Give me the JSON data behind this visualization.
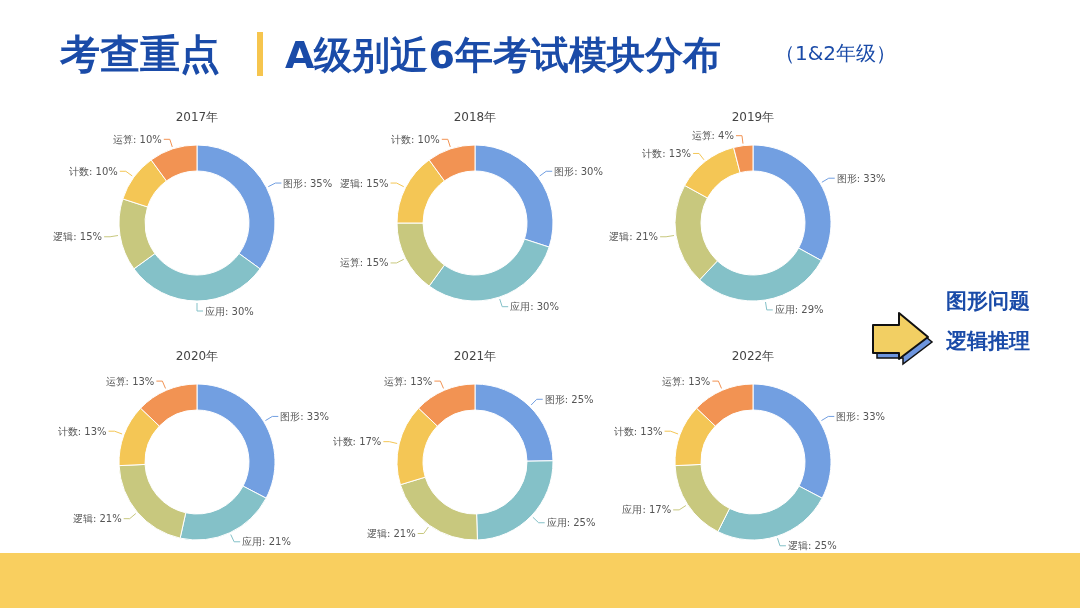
{
  "chart_data": [
    {
      "type": "other",
      "title": "考查重点",
      "subtitle": "A级别近6年考试模块分布",
      "annotations": [
        "（1&2年级）"
      ]
    },
    {
      "type": "donut",
      "title": "2017年",
      "categories": [
        "图形",
        "应用",
        "逻辑",
        "计数",
        "运算"
      ],
      "values": [
        35,
        30,
        15,
        10,
        10
      ],
      "value_labels": [
        ": 35%",
        ": 30%",
        ": 15%",
        ": 10%",
        ": 10%"
      ],
      "colors": [
        "#729fe1",
        "#84c1c8",
        "#c8c87e",
        "#f4c655",
        "#f29353"
      ]
    },
    {
      "type": "donut",
      "title": "2018年",
      "categories": [
        "图形",
        "应用",
        "运算",
        "逻辑",
        "计数"
      ],
      "values": [
        30,
        30,
        15,
        15,
        10
      ],
      "value_labels": [
        ": 30%",
        ": 30%",
        ": 15%",
        ": 15%",
        ": 10%"
      ],
      "colors": [
        "#729fe1",
        "#84c1c8",
        "#c8c87e",
        "#f4c655",
        "#f29353"
      ]
    },
    {
      "type": "donut",
      "title": "2019年",
      "categories": [
        "图形",
        "应用",
        "逻辑",
        "计数",
        "运算"
      ],
      "values": [
        33,
        29,
        21,
        13,
        4
      ],
      "value_labels": [
        ": 33%",
        ": 29%",
        ": 21%",
        ": 13%",
        ": 4%"
      ],
      "colors": [
        "#729fe1",
        "#84c1c8",
        "#c8c87e",
        "#f4c655",
        "#f29353"
      ]
    },
    {
      "type": "donut",
      "title": "2020年",
      "categories": [
        "图形",
        "应用",
        "逻辑",
        "计数",
        "运算"
      ],
      "values": [
        33,
        21,
        21,
        13,
        13
      ],
      "value_labels": [
        ": 33%",
        ": 21%",
        ": 21%",
        ": 13%",
        ": 13%"
      ],
      "colors": [
        "#729fe1",
        "#84c1c8",
        "#c8c87e",
        "#f4c655",
        "#f29353"
      ]
    },
    {
      "type": "donut",
      "title": "2021年",
      "categories": [
        "图形",
        "应用",
        "逻辑",
        "计数",
        "运算"
      ],
      "values": [
        25,
        25,
        21,
        17,
        13
      ],
      "value_labels": [
        ": 25%",
        ": 25%",
        ": 21%",
        ": 17%",
        ": 13%"
      ],
      "colors": [
        "#729fe1",
        "#84c1c8",
        "#c8c87e",
        "#f4c655",
        "#f29353"
      ]
    },
    {
      "type": "donut",
      "title": "2022年",
      "categories": [
        "图形",
        "逻辑",
        "应用",
        "计数",
        "运算"
      ],
      "values": [
        33,
        25,
        17,
        13,
        13
      ],
      "value_labels": [
        ": 33%",
        ": 25%",
        ": 17%",
        ": 13%",
        ": 13%"
      ],
      "colors": [
        "#729fe1",
        "#84c1c8",
        "#c8c87e",
        "#f4c655",
        "#f29353"
      ]
    },
    {
      "type": "other",
      "annotations": [
        "图形问题",
        "逻辑推理"
      ]
    }
  ]
}
